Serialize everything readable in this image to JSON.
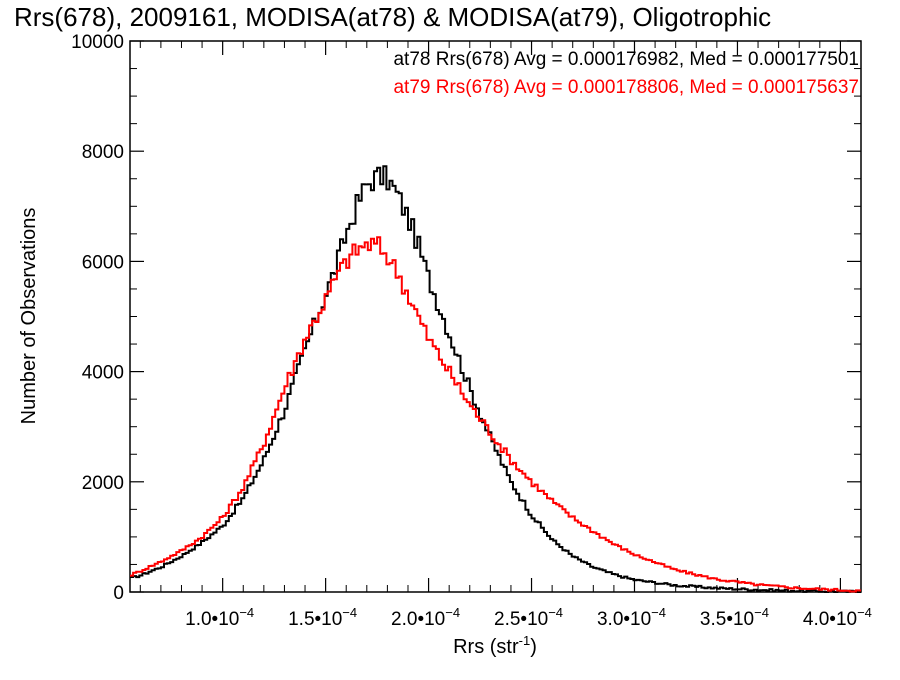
{
  "chart_data": {
    "type": "line",
    "title": "Rrs(678), 2009161, MODISA(at78) & MODISA(at79), Oligotrophic",
    "xlabel": "Rrs (str",
    "xlabel_sup": "-1",
    "xlabel_tail": ")",
    "ylabel": "Number of Observations",
    "xlim": [
      5.5e-05,
      0.00041
    ],
    "ylim": [
      0,
      10000
    ],
    "x_ticks": [
      {
        "value": 0.0001,
        "mantissa": "1.0•10",
        "exp": "−4"
      },
      {
        "value": 0.00015,
        "mantissa": "1.5•10",
        "exp": "−4"
      },
      {
        "value": 0.0002,
        "mantissa": "2.0•10",
        "exp": "−4"
      },
      {
        "value": 0.00025,
        "mantissa": "2.5•10",
        "exp": "−4"
      },
      {
        "value": 0.0003,
        "mantissa": "3.0•10",
        "exp": "−4"
      },
      {
        "value": 0.00035,
        "mantissa": "3.5•10",
        "exp": "−4"
      },
      {
        "value": 0.0004,
        "mantissa": "4.0•10",
        "exp": "−4"
      }
    ],
    "y_ticks": [
      0,
      2000,
      4000,
      6000,
      8000,
      10000
    ],
    "y_tick_labels": [
      "0",
      "2000",
      "4000",
      "6000",
      "8000",
      "10000"
    ],
    "grid": false,
    "legend_placement": "top-right",
    "annotations": [
      {
        "text": "at78 Rrs(678) Avg = 0.000176982, Med = 0.000177501",
        "color": "#000000"
      },
      {
        "text": "at79 Rrs(678) Avg = 0.000178806, Med = 0.000175637",
        "color": "#ff0000"
      }
    ],
    "series": [
      {
        "color": "#000000",
        "x": [
          5.5e-05,
          6e-05,
          7e-05,
          8e-05,
          9e-05,
          0.0001,
          0.00011,
          0.00012,
          0.00013,
          0.00014,
          0.00015,
          0.000155,
          0.00016,
          0.000165,
          0.00017,
          0.000175,
          0.00018,
          0.000185,
          0.00019,
          0.000195,
          0.0002,
          0.00021,
          0.00022,
          0.00023,
          0.00024,
          0.00025,
          0.00026,
          0.00027,
          0.00028,
          0.00029,
          0.0003,
          0.00032,
          0.00034,
          0.00036,
          0.00038,
          0.0004,
          0.00041
        ],
        "y": [
          250,
          300,
          450,
          650,
          900,
          1200,
          1700,
          2400,
          3300,
          4400,
          5400,
          5900,
          6500,
          7000,
          7400,
          7550,
          7500,
          7200,
          6800,
          6300,
          5700,
          4700,
          3700,
          2800,
          2000,
          1400,
          950,
          650,
          450,
          320,
          220,
          120,
          70,
          40,
          20,
          10,
          5
        ]
      },
      {
        "color": "#ff0000",
        "x": [
          5.5e-05,
          6e-05,
          7e-05,
          8e-05,
          9e-05,
          0.0001,
          0.00011,
          0.00012,
          0.00013,
          0.00014,
          0.00015,
          0.000155,
          0.00016,
          0.000165,
          0.00017,
          0.000175,
          0.00018,
          0.000185,
          0.00019,
          0.000195,
          0.0002,
          0.00021,
          0.00022,
          0.00023,
          0.00024,
          0.00025,
          0.00026,
          0.00027,
          0.00028,
          0.00029,
          0.0003,
          0.00032,
          0.00034,
          0.00036,
          0.00038,
          0.0004,
          0.00041
        ],
        "y": [
          300,
          380,
          550,
          750,
          1000,
          1350,
          1900,
          2700,
          3700,
          4600,
          5300,
          5700,
          6000,
          6200,
          6300,
          6300,
          6100,
          5800,
          5400,
          5000,
          4600,
          4000,
          3400,
          2900,
          2400,
          2000,
          1650,
          1350,
          1100,
          870,
          680,
          400,
          230,
          130,
          70,
          35,
          20
        ]
      }
    ]
  }
}
